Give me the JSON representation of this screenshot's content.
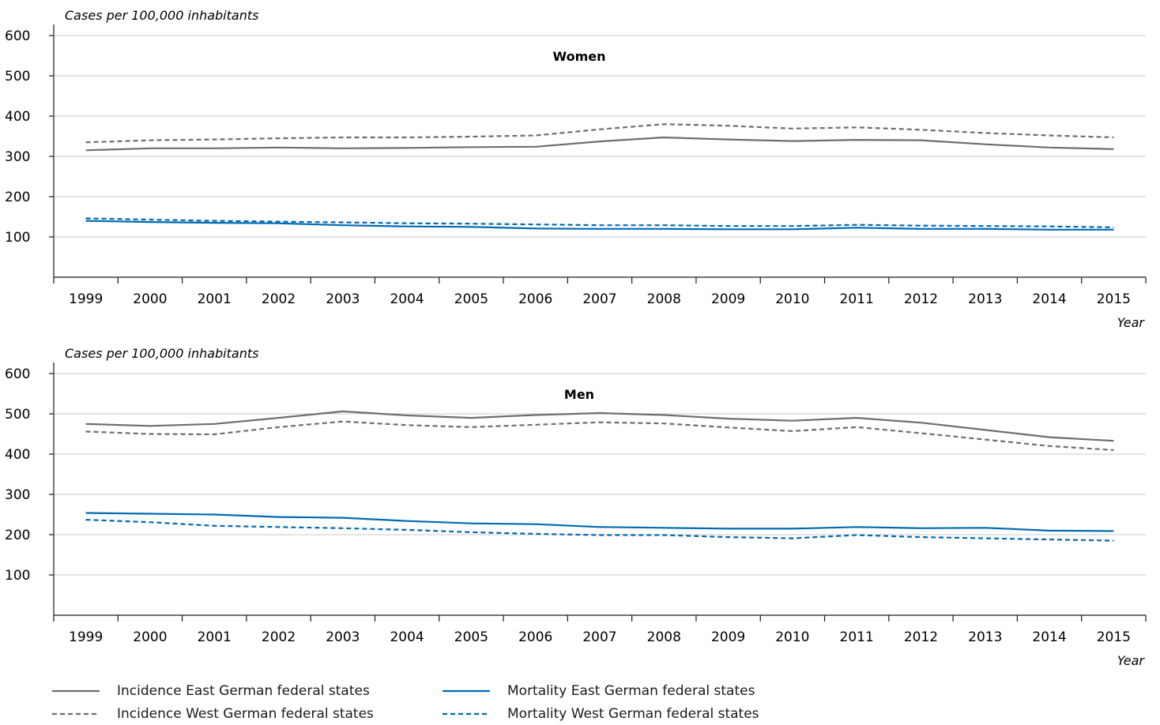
{
  "chart_data": [
    {
      "type": "line",
      "title": "Women",
      "ylabel": "Cases per 100,000 inhabitants",
      "xlabel": "Year",
      "ylim": [
        0,
        600
      ],
      "yticks": [
        "100",
        "200",
        "300",
        "400",
        "500",
        "600"
      ],
      "categories": [
        "1999",
        "2000",
        "2001",
        "2002",
        "2003",
        "2004",
        "2005",
        "2006",
        "2007",
        "2008",
        "2009",
        "2010",
        "2011",
        "2012",
        "2013",
        "2014",
        "2015"
      ],
      "grid": "horizontal",
      "series": [
        {
          "name": "Incidence East German federal states",
          "color": "#6d6e71",
          "dash": "solid",
          "values": [
            315,
            320,
            320,
            322,
            320,
            321,
            323,
            324,
            337,
            347,
            342,
            338,
            341,
            340,
            330,
            322,
            318
          ]
        },
        {
          "name": "Incidence West German federal states",
          "color": "#6d6e71",
          "dash": "dashed",
          "values": [
            335,
            340,
            342,
            345,
            347,
            347,
            349,
            352,
            367,
            380,
            376,
            369,
            372,
            366,
            358,
            352,
            347
          ]
        },
        {
          "name": "Mortality East German federal states",
          "color": "#0069b3",
          "dash": "solid",
          "values": [
            140,
            137,
            135,
            134,
            129,
            126,
            125,
            121,
            120,
            120,
            119,
            119,
            123,
            120,
            120,
            118,
            118
          ]
        },
        {
          "name": "Mortality West German federal states",
          "color": "#0069b3",
          "dash": "dashed",
          "values": [
            146,
            143,
            140,
            138,
            136,
            134,
            133,
            131,
            129,
            129,
            127,
            127,
            130,
            128,
            127,
            126,
            124
          ]
        }
      ]
    },
    {
      "type": "line",
      "title": "Men",
      "ylabel": "Cases per 100,000 inhabitants",
      "xlabel": "Year",
      "ylim": [
        0,
        600
      ],
      "yticks": [
        "100",
        "200",
        "300",
        "400",
        "500",
        "600"
      ],
      "categories": [
        "1999",
        "2000",
        "2001",
        "2002",
        "2003",
        "2004",
        "2005",
        "2006",
        "2007",
        "2008",
        "2009",
        "2010",
        "2011",
        "2012",
        "2013",
        "2014",
        "2015"
      ],
      "grid": "horizontal",
      "series": [
        {
          "name": "Incidence East German federal states",
          "color": "#6d6e71",
          "dash": "solid",
          "values": [
            475,
            470,
            475,
            490,
            506,
            496,
            490,
            497,
            502,
            497,
            488,
            483,
            490,
            478,
            460,
            442,
            433
          ]
        },
        {
          "name": "Incidence West German federal states",
          "color": "#6d6e71",
          "dash": "dashed",
          "values": [
            456,
            450,
            449,
            467,
            481,
            472,
            467,
            473,
            479,
            476,
            466,
            457,
            467,
            452,
            436,
            420,
            410
          ]
        },
        {
          "name": "Mortality East German federal states",
          "color": "#0069b3",
          "dash": "solid",
          "values": [
            254,
            252,
            250,
            244,
            242,
            234,
            228,
            226,
            219,
            217,
            215,
            215,
            219,
            216,
            217,
            210,
            209
          ]
        },
        {
          "name": "Mortality West German federal states",
          "color": "#0069b3",
          "dash": "dashed",
          "values": [
            237,
            231,
            222,
            219,
            216,
            212,
            206,
            202,
            199,
            199,
            194,
            191,
            199,
            194,
            191,
            188,
            185
          ]
        }
      ]
    }
  ],
  "legend": [
    {
      "label": "Incidence East German federal states",
      "color": "#6d6e71",
      "dash": "solid"
    },
    {
      "label": "Incidence West German federal states",
      "color": "#6d6e71",
      "dash": "dashed"
    },
    {
      "label": "Mortality East German federal states",
      "color": "#0069b3",
      "dash": "solid"
    },
    {
      "label": "Mortality West German federal states",
      "color": "#0069b3",
      "dash": "dashed"
    }
  ]
}
